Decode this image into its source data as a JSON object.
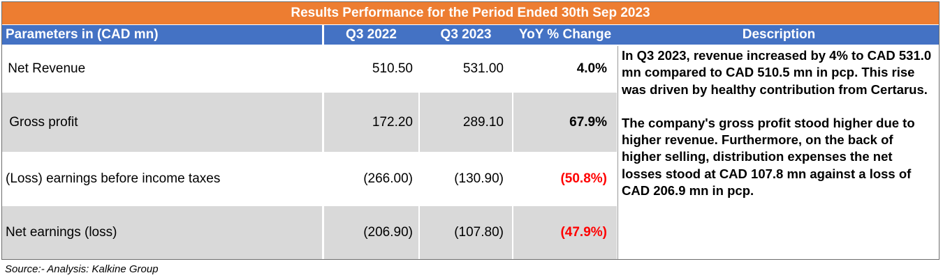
{
  "title": "Results Performance for the Period Ended 30th Sep 2023",
  "headers": {
    "parameters": "Parameters in (CAD mn)",
    "q3_2022": "Q3 2022",
    "q3_2023": "Q3 2023",
    "yoy": "YoY % Change",
    "description": "Description"
  },
  "rows": [
    {
      "label": " Net Revenue",
      "q3_2022": "510.50",
      "q3_2023": "531.00",
      "yoy": "4.0%"
    },
    {
      "label": " Gross profit",
      "q3_2022": "172.20",
      "q3_2023": "289.10",
      "yoy": "67.9%"
    },
    {
      "label": "(Loss) earnings before income taxes",
      "q3_2022": "(266.00)",
      "q3_2023": "(130.90)",
      "yoy": "(50.8%)"
    },
    {
      "label": "Net earnings (loss)",
      "q3_2022": "(206.90)",
      "q3_2023": "(107.80)",
      "yoy": "(47.9%)"
    }
  ],
  "description": {
    "paragraph1": "In Q3 2023, revenue increased by 4% to CAD 531.0 mn compared to CAD 510.5 mn in pcp. This rise was driven by healthy contribution from Certarus.",
    "paragraph2": "The company's gross profit stood higher due to higher revenue. Furthermore, on the back of higher selling, distribution expenses the net losses stood at CAD 107.8 mn against a loss of CAD 206.9 mn in pcp."
  },
  "source": "Source:- Analysis: Kalkine Group",
  "colors": {
    "title_bg": "#ed7d31",
    "header_bg": "#4472c4",
    "alt_row_bg": "#d9d9d9",
    "negative_text": "#ff0000"
  }
}
